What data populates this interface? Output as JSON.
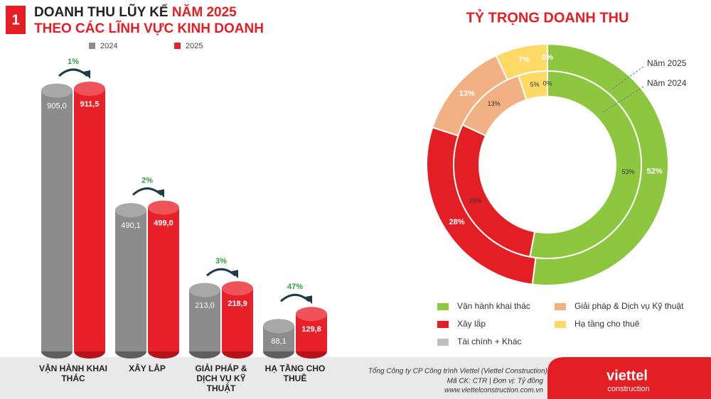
{
  "badge": "1",
  "chart_data": [
    {
      "type": "cylinder-bar",
      "title": [
        "DOANH THU LŨY KẾ",
        "NĂM 2025",
        "THEO CÁC LĨNH VỰC KINH DOANH"
      ],
      "categories": [
        "VẬN HÀNH KHAI THÁC",
        "XÂY LẮP",
        "GIẢI PHÁP & DỊCH VỤ KỸ THUẬT",
        "HẠ TẦNG CHO THUÊ"
      ],
      "series": [
        {
          "name": "2024",
          "color": "#8c8c8c",
          "values": [
            905.0,
            490.1,
            213.0,
            88.1
          ],
          "value_labels": [
            "905,0",
            "490,1",
            "213,0",
            "88,1"
          ]
        },
        {
          "name": "2025",
          "color": "#e8202a",
          "values": [
            911.5,
            499.0,
            218.9,
            129.8
          ],
          "value_labels": [
            "911,5",
            "499,0",
            "218,9",
            "129,8"
          ]
        }
      ],
      "annotations": [
        "1%",
        "2%",
        "3%",
        "47%"
      ]
    },
    {
      "type": "donut",
      "title": "TỶ TRỌNG DOANH THU",
      "categories": [
        "Vận hành khai thác",
        "Xây lắp",
        "Giải pháp & Dịch vụ Kỹ thuật",
        "Hạ tầng cho thuê",
        "Tài chính + Khác"
      ],
      "series": [
        {
          "name": "Năm 2025",
          "colors": [
            "#8dc63f",
            "#e31e24",
            "#f2b183",
            "#ffd966",
            "#bfbfbf"
          ],
          "values": [
            52,
            28,
            13,
            7,
            0
          ],
          "value_labels": [
            "52%",
            "28%",
            "13%",
            "7%",
            "0%"
          ]
        },
        {
          "name": "Năm 2024",
          "colors": [
            "#8dc63f",
            "#e31e24",
            "#f2b183",
            "#ffd966",
            "#4472c4"
          ],
          "values": [
            53,
            29,
            13,
            5,
            0
          ],
          "value_labels": [
            "53%",
            "29%",
            "13%",
            "5%",
            "0%"
          ]
        }
      ]
    }
  ],
  "footer": [
    "Tổng Công ty CP Công trình Viettel (Viettel Construction)",
    "Mã CK: CTR  |  Đơn vị: Tỷ đồng",
    "www.viettelconstruction.com.vn"
  ],
  "logo": [
    "viettel",
    "construction"
  ]
}
